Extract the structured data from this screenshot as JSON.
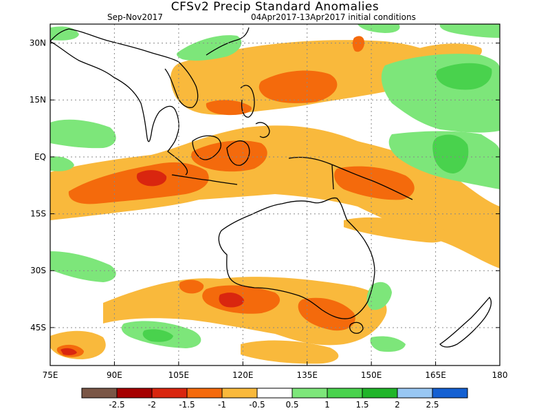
{
  "header": {
    "title": "CFSv2 Precip Standard Anomalies",
    "season": "Sep-Nov2017",
    "init": "04Apr2017-13Apr2017 initial conditions"
  },
  "map": {
    "lon_range": [
      75,
      180
    ],
    "lat_range": [
      -55,
      35
    ],
    "lon_ticks": [
      {
        "value": 75,
        "label": "75E"
      },
      {
        "value": 90,
        "label": "90E"
      },
      {
        "value": 105,
        "label": "105E"
      },
      {
        "value": 120,
        "label": "120E"
      },
      {
        "value": 135,
        "label": "135E"
      },
      {
        "value": 150,
        "label": "150E"
      },
      {
        "value": 165,
        "label": "165E"
      },
      {
        "value": 180,
        "label": "180"
      }
    ],
    "lat_ticks": [
      {
        "value": 30,
        "label": "30N"
      },
      {
        "value": 15,
        "label": "15N"
      },
      {
        "value": 0,
        "label": "EQ"
      },
      {
        "value": -15,
        "label": "15S"
      },
      {
        "value": -30,
        "label": "30S"
      },
      {
        "value": -45,
        "label": "45S"
      }
    ],
    "grid": true,
    "colors": {
      "c_m25": "#7a5646",
      "c_m2": "#a50000",
      "c_m15": "#d9260f",
      "c_m1": "#f46a0c",
      "c_m05": "#f9b93c",
      "c_0": "#ffffff",
      "c_05": "#7de67a",
      "c_1": "#49d24d",
      "c_15": "#20b52a",
      "c_2": "#98c7f3",
      "c_25": "#1460d2",
      "coast": "#000000"
    }
  },
  "colorbar": {
    "levels": [
      "-2.5",
      "-2",
      "-1.5",
      "-1",
      "-0.5",
      "0.5",
      "1",
      "1.5",
      "2",
      "2.5"
    ],
    "colors": [
      "#7a5646",
      "#a50000",
      "#d9260f",
      "#f46a0c",
      "#f9b93c",
      "#ffffff",
      "#7de67a",
      "#49d24d",
      "#20b52a",
      "#98c7f3",
      "#1460d2"
    ]
  }
}
